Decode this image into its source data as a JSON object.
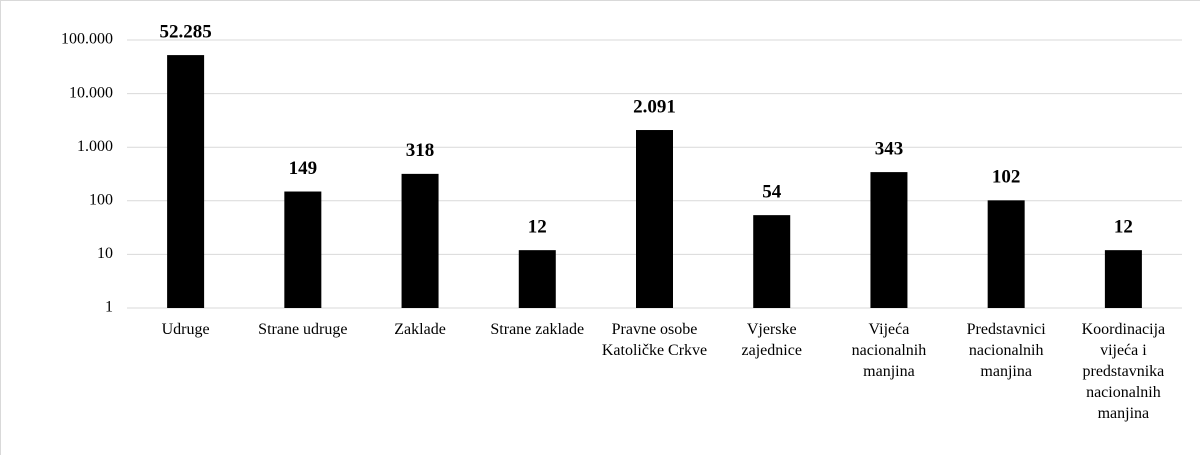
{
  "chart_data": {
    "type": "bar",
    "categories": [
      "Udruge",
      "Strane udruge",
      "Zaklade",
      "Strane zaklade",
      "Pravne osobe Katoličke Crkve",
      "Vjerske zajednice",
      "Vijeća nacionalnih manjina",
      "Predstavnici nacionalnih manjina",
      "Koordinacija vijeća i predstavnika nacionalnih manjina"
    ],
    "values": [
      52285,
      149,
      318,
      12,
      2091,
      54,
      343,
      102,
      12
    ],
    "value_labels": [
      "52.285",
      "149",
      "318",
      "12",
      "2.091",
      "54",
      "343",
      "102",
      "12"
    ],
    "color": "#000000",
    "log_scale": true,
    "ylim": [
      1,
      100000
    ],
    "yticks": [
      1,
      10,
      100,
      {
        "value": 1000,
        "label": "1.000"
      },
      {
        "value": 10000,
        "label": "10.000"
      },
      {
        "value": 100000,
        "label": "100.000"
      }
    ],
    "grid": true
  }
}
